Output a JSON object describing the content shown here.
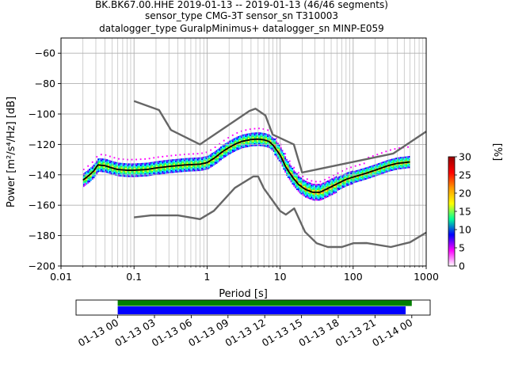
{
  "title": {
    "line1": "BK.BK67.00.HHE   2019-01-13 -- 2019-01-13  (46/46 segments)",
    "line2": "sensor_type CMG-3T sensor_sn T310003",
    "line3": "datalogger_type GuralpMinimus+ datalogger_sn MINP-E059"
  },
  "colors": {
    "model_curve": "#666666",
    "mean_curve": "#000000",
    "grid": "#b0b0b0",
    "timeline_green": "#008000",
    "timeline_blue": "#0000ff"
  },
  "chart_data": {
    "type": "heatmap",
    "x_scale": "log",
    "xlabel": "Period [s]",
    "ylabel": "Power [m²/s⁴/Hz] [dB]",
    "xlim": [
      0.01,
      1000
    ],
    "ylim": [
      -200,
      -50
    ],
    "xticks": [
      {
        "value": 0.01,
        "label": "0.01"
      },
      {
        "value": 0.1,
        "label": "0.1"
      },
      {
        "value": 1,
        "label": "1"
      },
      {
        "value": 10,
        "label": "10"
      },
      {
        "value": 100,
        "label": "100"
      },
      {
        "value": 1000,
        "label": "1000"
      }
    ],
    "yticks": [
      {
        "value": -60,
        "label": "−60"
      },
      {
        "value": -80,
        "label": "−80"
      },
      {
        "value": -100,
        "label": "−100"
      },
      {
        "value": -120,
        "label": "−120"
      },
      {
        "value": -140,
        "label": "−140"
      },
      {
        "value": -160,
        "label": "−160"
      },
      {
        "value": -180,
        "label": "−180"
      },
      {
        "value": -200,
        "label": "−200"
      }
    ],
    "grid": true,
    "high_noise_model": [
      [
        0.1,
        -91.5
      ],
      [
        0.22,
        -97.4
      ],
      [
        0.32,
        -110.5
      ],
      [
        0.8,
        -120
      ],
      [
        3.8,
        -98
      ],
      [
        4.6,
        -96.5
      ],
      [
        6.3,
        -101
      ],
      [
        7.9,
        -113.5
      ],
      [
        15.4,
        -120
      ],
      [
        20,
        -138.5
      ],
      [
        354.8,
        -126
      ],
      [
        1000,
        -111.5
      ]
    ],
    "low_noise_model": [
      [
        0.1,
        -168
      ],
      [
        0.17,
        -166.7
      ],
      [
        0.4,
        -166.7
      ],
      [
        0.8,
        -169.2
      ],
      [
        1.24,
        -163.7
      ],
      [
        2.4,
        -148.6
      ],
      [
        4.3,
        -141.1
      ],
      [
        5,
        -141.1
      ],
      [
        6,
        -149
      ],
      [
        10,
        -163.8
      ],
      [
        12,
        -166.2
      ],
      [
        15.6,
        -162.1
      ],
      [
        21.9,
        -177.5
      ],
      [
        31.6,
        -185
      ],
      [
        45,
        -187.5
      ],
      [
        70,
        -187.5
      ],
      [
        101,
        -185
      ],
      [
        154.4,
        -184.9
      ],
      [
        328.2,
        -187.5
      ],
      [
        600,
        -184.4
      ],
      [
        1000,
        -178
      ]
    ],
    "mean_psd": [
      [
        0.02,
        -143.5
      ],
      [
        0.024,
        -140.5
      ],
      [
        0.028,
        -137.5
      ],
      [
        0.032,
        -133.5
      ],
      [
        0.04,
        -134
      ],
      [
        0.05,
        -135.5
      ],
      [
        0.06,
        -136.5
      ],
      [
        0.08,
        -137
      ],
      [
        0.1,
        -137
      ],
      [
        0.15,
        -136.5
      ],
      [
        0.2,
        -135.5
      ],
      [
        0.3,
        -134.5
      ],
      [
        0.5,
        -133.5
      ],
      [
        0.8,
        -133
      ],
      [
        1,
        -132
      ],
      [
        1.3,
        -128.5
      ],
      [
        1.6,
        -125
      ],
      [
        2,
        -122
      ],
      [
        2.5,
        -119.5
      ],
      [
        3,
        -118
      ],
      [
        4,
        -116.8
      ],
      [
        5,
        -116.5
      ],
      [
        6,
        -117
      ],
      [
        7,
        -118
      ],
      [
        8,
        -120.5
      ],
      [
        10,
        -127
      ],
      [
        12,
        -135
      ],
      [
        15,
        -142
      ],
      [
        18,
        -146.5
      ],
      [
        22,
        -149.5
      ],
      [
        28,
        -151.5
      ],
      [
        35,
        -151.5
      ],
      [
        45,
        -149
      ],
      [
        60,
        -146
      ],
      [
        80,
        -143
      ],
      [
        100,
        -141.5
      ],
      [
        150,
        -139
      ],
      [
        200,
        -137
      ],
      [
        300,
        -134
      ],
      [
        400,
        -132.5
      ],
      [
        500,
        -132
      ],
      [
        600,
        -131.5
      ]
    ],
    "colorbar": {
      "label": "[%]",
      "range": [
        0,
        30
      ],
      "ticks": [
        {
          "value": 0,
          "label": "0"
        },
        {
          "value": 5,
          "label": "5"
        },
        {
          "value": 10,
          "label": "10"
        },
        {
          "value": 15,
          "label": "15"
        },
        {
          "value": 20,
          "label": "20"
        },
        {
          "value": 25,
          "label": "25"
        },
        {
          "value": 30,
          "label": "30"
        }
      ],
      "colormap": [
        "#ffffff",
        "#ff00ff",
        "#0000ff",
        "#00ff99",
        "#ffff00",
        "#ff9900",
        "#ff0000",
        "#990000"
      ]
    },
    "timeline": {
      "range_hours": [
        -3.4,
        25.5
      ],
      "ticks": [
        {
          "hours": 0,
          "label": "01-13 00"
        },
        {
          "hours": 3,
          "label": "01-13 03"
        },
        {
          "hours": 6,
          "label": "01-13 06"
        },
        {
          "hours": 9,
          "label": "01-13 09"
        },
        {
          "hours": 12,
          "label": "01-13 12"
        },
        {
          "hours": 15,
          "label": "01-13 15"
        },
        {
          "hours": 18,
          "label": "01-13 18"
        },
        {
          "hours": 21,
          "label": "01-13 21"
        },
        {
          "hours": 24,
          "label": "01-14 00"
        }
      ],
      "data_available": [
        [
          0,
          24
        ]
      ],
      "data_used": [
        [
          0,
          23.5
        ]
      ]
    }
  }
}
